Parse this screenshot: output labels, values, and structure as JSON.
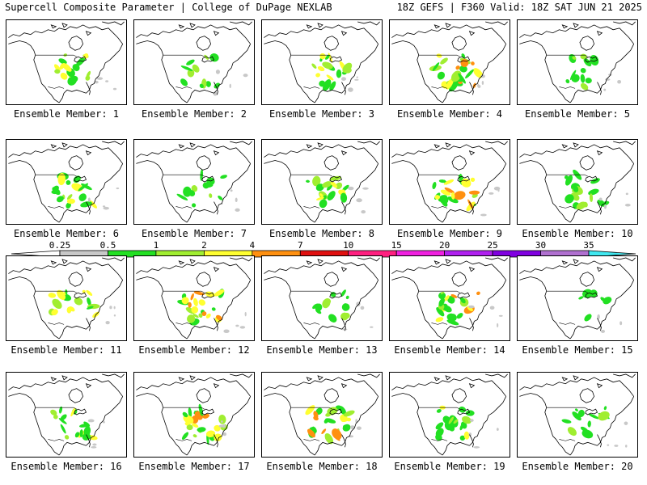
{
  "header": {
    "left_title": "Supercell Composite Parameter | College of DuPage NEXLAB",
    "right_title": "18Z GEFS | F360 Valid: 18Z SAT JUN 21 2025"
  },
  "panels": [
    {
      "label": "Ensemble Member: 1",
      "intensity": 2,
      "seed": 11
    },
    {
      "label": "Ensemble Member: 2",
      "intensity": 1,
      "seed": 23
    },
    {
      "label": "Ensemble Member: 3",
      "intensity": 2,
      "seed": 37
    },
    {
      "label": "Ensemble Member: 4",
      "intensity": 3,
      "seed": 41
    },
    {
      "label": "Ensemble Member: 5",
      "intensity": 1,
      "seed": 53
    },
    {
      "label": "Ensemble Member: 6",
      "intensity": 2,
      "seed": 67
    },
    {
      "label": "Ensemble Member: 7",
      "intensity": 1,
      "seed": 71
    },
    {
      "label": "Ensemble Member: 8",
      "intensity": 2,
      "seed": 83
    },
    {
      "label": "Ensemble Member: 9",
      "intensity": 3,
      "seed": 97
    },
    {
      "label": "Ensemble Member: 10",
      "intensity": 2,
      "seed": 101
    },
    {
      "label": "Ensemble Member: 11",
      "intensity": 2,
      "seed": 113
    },
    {
      "label": "Ensemble Member: 12",
      "intensity": 3,
      "seed": 127
    },
    {
      "label": "Ensemble Member: 13",
      "intensity": 1,
      "seed": 131
    },
    {
      "label": "Ensemble Member: 14",
      "intensity": 3,
      "seed": 149
    },
    {
      "label": "Ensemble Member: 15",
      "intensity": 0,
      "seed": 151
    },
    {
      "label": "Ensemble Member: 16",
      "intensity": 2,
      "seed": 163
    },
    {
      "label": "Ensemble Member: 17",
      "intensity": 3,
      "seed": 173
    },
    {
      "label": "Ensemble Member: 18",
      "intensity": 3,
      "seed": 181
    },
    {
      "label": "Ensemble Member: 19",
      "intensity": 2,
      "seed": 191
    },
    {
      "label": "Ensemble Member: 20",
      "intensity": 1,
      "seed": 199
    }
  ],
  "colorbar": {
    "ticks": [
      "0.25",
      "0.5",
      "1",
      "2",
      "4",
      "7",
      "10",
      "15",
      "20",
      "25",
      "30",
      "35"
    ],
    "colors": [
      "#ffffff",
      "#c8c8c8",
      "#22e022",
      "#a0ee30",
      "#ffff30",
      "#ff9010",
      "#e01010",
      "#ff2080",
      "#f020e0",
      "#b020f0",
      "#8000e0",
      "#b070d0",
      "#40e8f0"
    ]
  }
}
